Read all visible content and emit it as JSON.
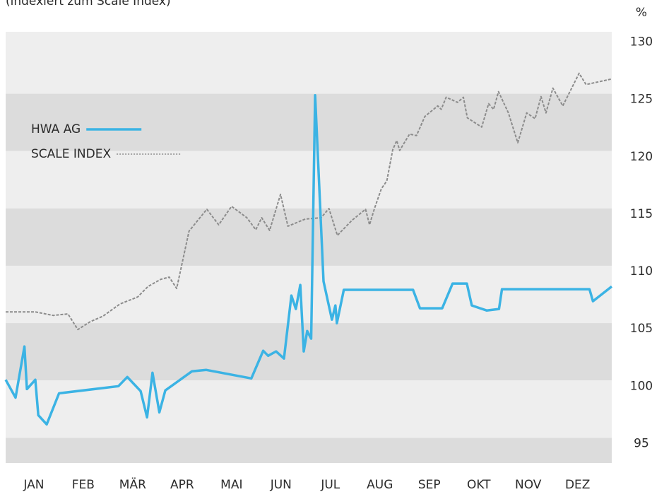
{
  "chart_data": {
    "type": "line",
    "subtitle": "(indexiert zum Scale Index)",
    "y_unit": "%",
    "xlim": [
      -0.07,
      12.19
    ],
    "xticks": [
      {
        "value": 0.5,
        "label": "JAN"
      },
      {
        "value": 1.5,
        "label": "FEB"
      },
      {
        "value": 2.5,
        "label": "MÄR"
      },
      {
        "value": 3.5,
        "label": "APR"
      },
      {
        "value": 4.5,
        "label": "MAI"
      },
      {
        "value": 5.5,
        "label": "JUN"
      },
      {
        "value": 6.5,
        "label": "JUL"
      },
      {
        "value": 7.5,
        "label": "AUG"
      },
      {
        "value": 8.5,
        "label": "SEP"
      },
      {
        "value": 9.5,
        "label": "OKT"
      },
      {
        "value": 10.5,
        "label": "NOV"
      },
      {
        "value": 11.5,
        "label": "DEZ"
      }
    ],
    "ylim": [
      93.3,
      130.9
    ],
    "yticks": [
      95,
      100,
      105,
      110,
      115,
      120,
      125,
      130
    ],
    "grid": "bands",
    "legend": "upper left",
    "series": [
      {
        "name": "HWA AG",
        "color": "#3bb3e4",
        "style": "solid",
        "x": [
          -0.07,
          0.13,
          0.31,
          0.36,
          0.53,
          0.59,
          0.76,
          1.01,
          2.21,
          2.39,
          2.66,
          2.79,
          2.9,
          3.04,
          3.16,
          3.7,
          3.99,
          4.9,
          5.14,
          5.24,
          5.4,
          5.56,
          5.71,
          5.8,
          5.89,
          5.96,
          6.03,
          6.11,
          6.19,
          6.36,
          6.53,
          6.6,
          6.63,
          6.77,
          8.17,
          8.31,
          8.76,
          8.97,
          9.26,
          9.36,
          9.66,
          9.91,
          9.97,
          11.74,
          11.81,
          12.19
        ],
        "values": [
          100.56,
          99.0,
          103.46,
          99.75,
          100.56,
          97.47,
          96.67,
          99.38,
          100.0,
          100.8,
          99.57,
          97.28,
          101.17,
          97.72,
          99.63,
          101.3,
          101.42,
          100.68,
          103.09,
          102.65,
          103.03,
          102.41,
          107.9,
          106.73,
          108.83,
          103.03,
          104.81,
          104.14,
          125.37,
          109.14,
          105.8,
          107.04,
          105.49,
          108.4,
          108.4,
          106.79,
          106.79,
          108.95,
          108.95,
          107.04,
          106.6,
          106.73,
          108.46,
          108.46,
          107.41,
          108.7
        ]
      },
      {
        "name": "SCALE INDEX",
        "color": "#8c8c8c",
        "style": "dashed",
        "x": [
          -0.07,
          0.53,
          0.89,
          1.19,
          1.39,
          1.64,
          1.9,
          2.24,
          2.6,
          2.81,
          3.07,
          3.24,
          3.39,
          3.64,
          4.0,
          4.24,
          4.5,
          4.81,
          4.99,
          5.11,
          5.27,
          5.49,
          5.64,
          5.99,
          6.31,
          6.47,
          6.64,
          6.93,
          7.21,
          7.29,
          7.39,
          7.53,
          7.64,
          7.76,
          7.84,
          7.9,
          8.1,
          8.24,
          8.41,
          8.67,
          8.74,
          8.84,
          9.07,
          9.19,
          9.27,
          9.56,
          9.7,
          9.8,
          9.9,
          10.1,
          10.29,
          10.47,
          10.64,
          10.76,
          10.86,
          11.0,
          11.2,
          11.53,
          11.67,
          12.19
        ],
        "values": [
          106.48,
          106.48,
          106.17,
          106.3,
          104.94,
          105.62,
          106.11,
          107.16,
          107.78,
          108.7,
          109.32,
          109.51,
          108.52,
          113.52,
          115.43,
          114.07,
          115.68,
          114.69,
          113.64,
          114.69,
          113.58,
          116.73,
          113.95,
          114.57,
          114.69,
          115.49,
          113.15,
          114.44,
          115.43,
          114.07,
          115.49,
          117.22,
          117.9,
          120.62,
          121.42,
          120.56,
          121.98,
          121.85,
          123.52,
          124.44,
          124.14,
          125.19,
          124.75,
          125.19,
          123.4,
          122.59,
          124.63,
          124.14,
          125.68,
          123.83,
          121.23,
          123.83,
          123.33,
          125.25,
          123.83,
          125.99,
          124.44,
          127.28,
          126.3,
          126.79
        ]
      }
    ]
  }
}
